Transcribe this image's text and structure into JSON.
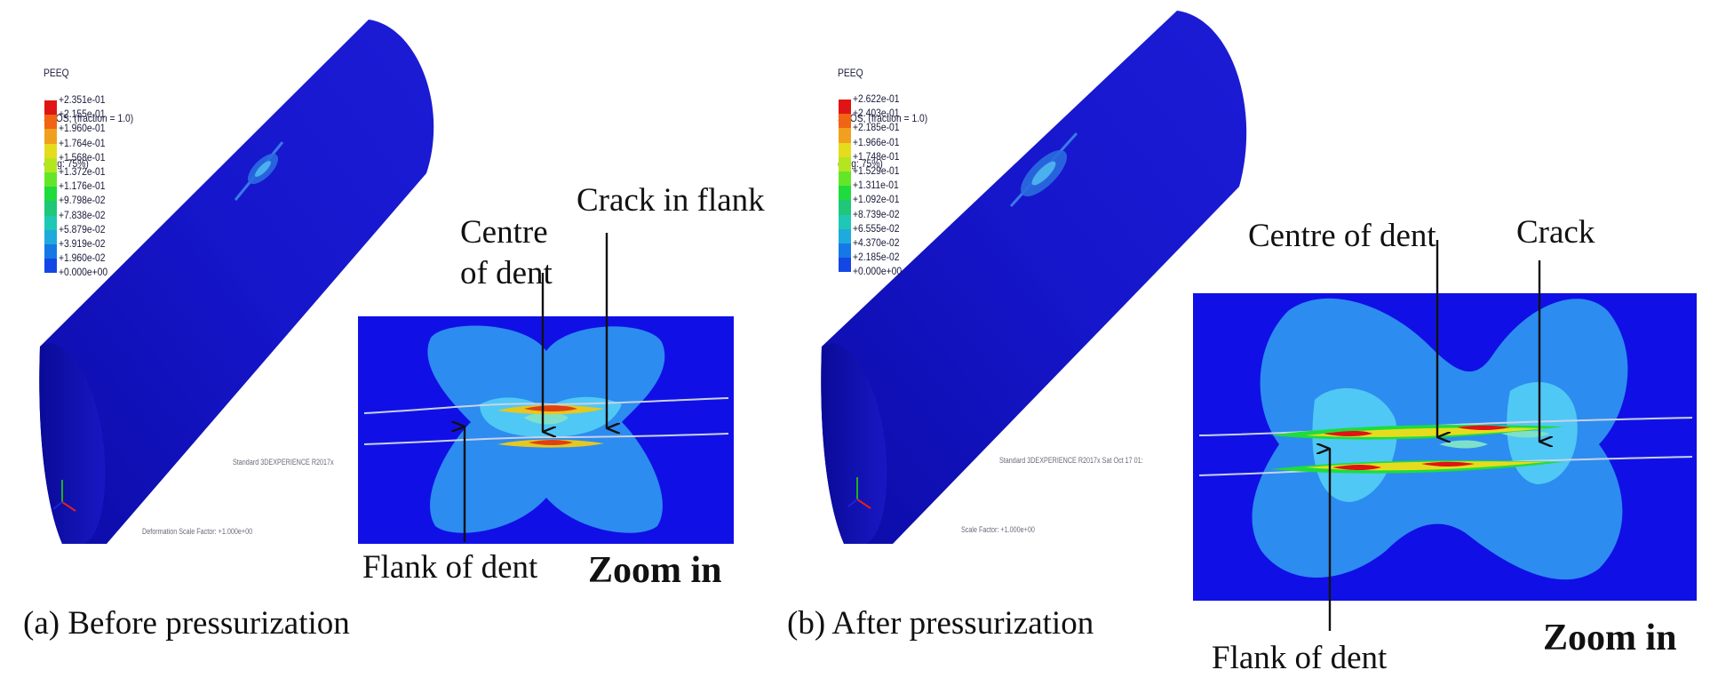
{
  "panels": [
    {
      "legend": {
        "header": [
          "PEEQ",
          "SPOS, (fraction = 1.0)",
          "(Avg: 75%)"
        ],
        "values": [
          "+2.351e-01",
          "+2.155e-01",
          "+1.960e-01",
          "+1.764e-01",
          "+1.568e-01",
          "+1.372e-01",
          "+1.176e-01",
          "+9.798e-02",
          "+7.838e-02",
          "+5.879e-02",
          "+3.919e-02",
          "+1.960e-02",
          "+0.000e+00"
        ]
      },
      "viewport_footer": {
        "info": "Standard 3DEXPERIENCE R2017x",
        "deformation": "Deformation Scale Factor: +1.000e+00"
      },
      "annotations": {
        "crack": "Crack in flank",
        "centre_line1": "Centre",
        "centre_line2": "of dent",
        "flank": "Flank of dent",
        "zoom": "Zoom in"
      },
      "caption": "(a) Before pressurization"
    },
    {
      "legend": {
        "header": [
          "PEEQ",
          "SPOS, (fraction = 1.0)",
          "(Avg: 75%)"
        ],
        "values": [
          "+2.622e-01",
          "+2.403e-01",
          "+2.185e-01",
          "+1.966e-01",
          "+1.748e-01",
          "+1.529e-01",
          "+1.311e-01",
          "+1.092e-01",
          "+8.739e-02",
          "+6.555e-02",
          "+4.370e-02",
          "+2.185e-02",
          "+0.000e+00"
        ]
      },
      "viewport_footer": {
        "info": "Standard 3DEXPERIENCE R2017x   Sat Oct 17 01:",
        "deformation": "Scale Factor: +1.000e+00"
      },
      "annotations": {
        "centre": "Centre of dent",
        "crack": "Crack",
        "flank": "Flank of dent",
        "zoom": "Zoom in"
      },
      "caption": "(b) After pressurization"
    }
  ],
  "contour_colors": [
    "#e01414",
    "#f06414",
    "#f0a01e",
    "#e6dc1e",
    "#b4e61e",
    "#64e628",
    "#1edc3c",
    "#1ec878",
    "#1ec8b4",
    "#1eaadc",
    "#1478e6",
    "#1446e6",
    "#1414dc"
  ],
  "colors": {
    "pipe": "#1414c8",
    "zoom_background": "#1010e6",
    "lobe_outer": "#2c8cf0",
    "lobe_inner": "#50c8f5"
  }
}
